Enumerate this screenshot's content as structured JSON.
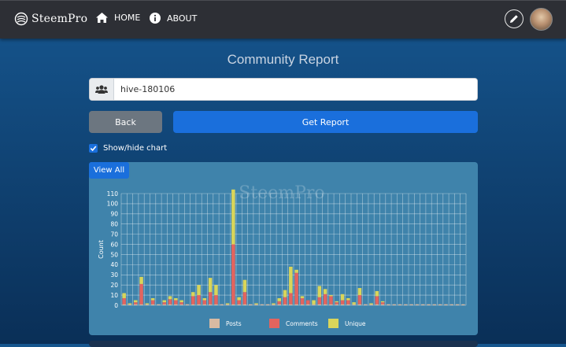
{
  "nav": {
    "brand": "SteemPro",
    "home": "HOME",
    "about": "ABOUT"
  },
  "page": {
    "title": "Community Report"
  },
  "search": {
    "value": "hive-180106"
  },
  "buttons": {
    "back": "Back",
    "get_report": "Get Report",
    "view_all": "View All"
  },
  "toggle": {
    "label": "Show/hide chart",
    "checked": true
  },
  "chart_data": {
    "type": "bar",
    "stacked": true,
    "watermark": "SteemPro",
    "ylabel": "Count",
    "ylim": [
      0,
      110
    ],
    "yticks": [
      0,
      10,
      20,
      30,
      40,
      50,
      60,
      70,
      80,
      90,
      100,
      110
    ],
    "legend_position": "bottom",
    "grid": true,
    "series": [
      {
        "name": "Posts",
        "color": "#d8baa2",
        "values": [
          1,
          1,
          1,
          1,
          1,
          1,
          1,
          1,
          1,
          1,
          1,
          1,
          1,
          1,
          1,
          1,
          1,
          1,
          1,
          1,
          1,
          1,
          1,
          1,
          1,
          1,
          1,
          1,
          1,
          1,
          1,
          1,
          1,
          1,
          1,
          1,
          1,
          1,
          1,
          1,
          1,
          1,
          1,
          1,
          1,
          1,
          1,
          1,
          1,
          1,
          1,
          1,
          1,
          1,
          1,
          1,
          1,
          1,
          1,
          1
        ]
      },
      {
        "name": "Comments",
        "color": "#e3645e",
        "values": [
          6,
          0,
          2,
          20,
          0,
          4,
          0,
          2,
          5,
          4,
          2,
          0,
          8,
          9,
          4,
          12,
          9,
          0,
          0,
          59,
          4,
          12,
          0,
          0,
          0,
          0,
          0,
          3,
          7,
          11,
          31,
          6,
          4,
          0,
          7,
          10,
          8,
          2,
          4,
          4,
          0,
          9,
          0,
          0,
          8,
          2,
          0,
          0,
          0,
          0,
          0,
          0,
          0,
          0,
          0,
          0,
          0,
          0,
          0,
          0
        ]
      },
      {
        "name": "Unique",
        "color": "#d9d55a",
        "values": [
          5,
          1,
          2,
          7,
          1,
          2,
          0,
          2,
          3,
          2,
          2,
          0,
          4,
          10,
          2,
          14,
          10,
          0,
          1,
          54,
          3,
          12,
          0,
          1,
          0,
          0,
          1,
          3,
          7,
          26,
          3,
          2,
          0,
          4,
          11,
          5,
          1,
          1,
          6,
          2,
          2,
          7,
          0,
          1,
          5,
          1,
          0,
          0,
          0,
          0,
          0,
          0,
          0,
          0,
          0,
          0,
          0,
          0,
          0,
          0
        ]
      }
    ]
  }
}
